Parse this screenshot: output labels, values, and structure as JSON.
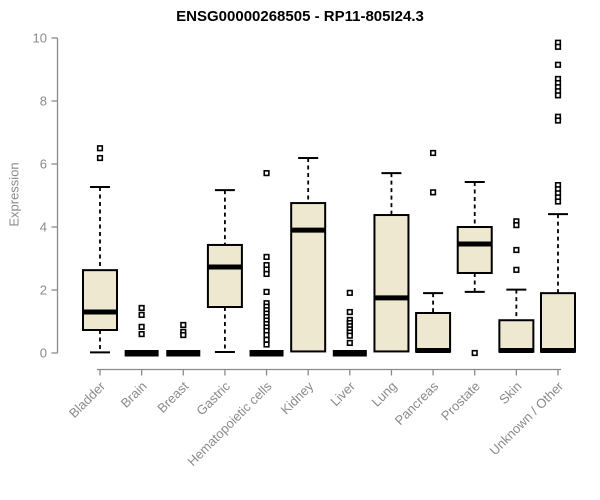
{
  "chart_data": {
    "type": "boxplot",
    "title": "ENSG00000268505 - RP11-805I24.3",
    "ylabel": "Expression",
    "xlabel": "",
    "ylim": [
      0,
      10
    ],
    "yticks": [
      0,
      2,
      4,
      6,
      8,
      10
    ],
    "grid": false,
    "legend": "none",
    "box_fill": "#EDE8CF",
    "box_stroke": "#000000",
    "axis_color": "#8a8a8a",
    "categories": [
      "Bladder",
      "Brain",
      "Breast",
      "Gastric",
      "Hematopoietic cells",
      "Kidney",
      "Liver",
      "Lung",
      "Pancreas",
      "Prostate",
      "Skin",
      "Unknown / Other"
    ],
    "series": [
      {
        "label": "Bladder",
        "whisker_low": 0.02,
        "q1": 0.73,
        "median": 1.3,
        "q3": 2.63,
        "whisker_high": 5.27,
        "outliers": [
          6.5,
          6.19
        ]
      },
      {
        "label": "Brain",
        "whisker_low": 0.0,
        "q1": 0.0,
        "median": 0.03,
        "q3": 0.06,
        "whisker_high": 0.06,
        "outliers": [
          1.43,
          1.21,
          0.83,
          0.6
        ]
      },
      {
        "label": "Breast",
        "whisker_low": 0.0,
        "q1": 0.0,
        "median": 0.03,
        "q3": 0.06,
        "whisker_high": 0.06,
        "outliers": [
          0.89,
          0.67,
          0.57
        ]
      },
      {
        "label": "Gastric",
        "whisker_low": 0.03,
        "q1": 1.46,
        "median": 2.73,
        "q3": 3.43,
        "whisker_high": 5.17,
        "outliers": []
      },
      {
        "label": "Hematopoietic cells",
        "whisker_low": 0.0,
        "q1": 0.0,
        "median": 0.03,
        "q3": 0.06,
        "whisker_high": 0.06,
        "outliers": [
          5.71,
          3.05,
          2.79,
          2.65,
          2.51,
          1.94,
          1.58,
          1.47,
          1.36,
          1.25,
          1.14,
          1.03,
          0.92,
          0.81,
          0.7,
          0.57,
          0.42,
          0.27
        ]
      },
      {
        "label": "Kidney",
        "whisker_low": 0.05,
        "q1": 0.05,
        "median": 3.9,
        "q3": 4.76,
        "whisker_high": 6.19,
        "outliers": []
      },
      {
        "label": "Liver",
        "whisker_low": 0.0,
        "q1": 0.0,
        "median": 0.03,
        "q3": 0.06,
        "whisker_high": 0.06,
        "outliers": [
          1.91,
          1.3,
          1.05,
          0.95,
          0.85,
          0.75,
          0.65,
          0.55,
          0.32
        ]
      },
      {
        "label": "Lung",
        "whisker_low": 0.02,
        "q1": 0.05,
        "median": 1.75,
        "q3": 4.38,
        "whisker_high": 5.71,
        "outliers": []
      },
      {
        "label": "Pancreas",
        "whisker_low": 0.02,
        "q1": 0.04,
        "median": 0.08,
        "q3": 1.27,
        "whisker_high": 1.9,
        "outliers": [
          6.35,
          5.1
        ]
      },
      {
        "label": "Prostate",
        "whisker_low": 1.94,
        "q1": 2.54,
        "median": 3.46,
        "q3": 4.0,
        "whisker_high": 5.43,
        "outliers": [
          0.0
        ]
      },
      {
        "label": "Skin",
        "whisker_low": 0.02,
        "q1": 0.04,
        "median": 0.08,
        "q3": 1.04,
        "whisker_high": 2.01,
        "outliers": [
          4.18,
          4.06,
          3.27,
          2.64
        ]
      },
      {
        "label": "Unknown / Other",
        "whisker_low": 0.02,
        "q1": 0.04,
        "median": 0.08,
        "q3": 1.9,
        "whisker_high": 4.41,
        "outliers": [
          9.85,
          9.72,
          9.15,
          8.7,
          8.57,
          8.44,
          8.31,
          8.18,
          7.5,
          7.38,
          5.33,
          5.2,
          5.07,
          4.94,
          4.81
        ]
      }
    ]
  }
}
